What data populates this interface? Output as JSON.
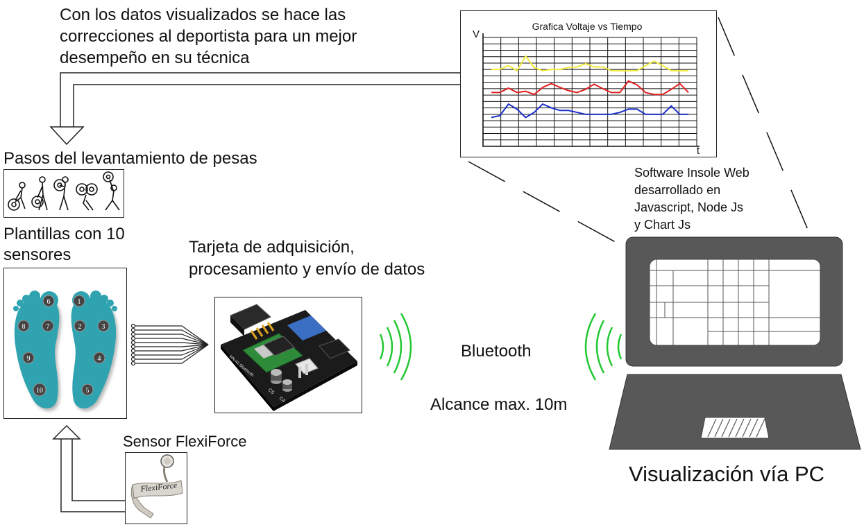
{
  "top_note": {
    "line1": "Con los datos visualizados se hace las",
    "line2": "correcciones al deportista para un mejor",
    "line3": "desempeño en su técnica"
  },
  "weightlifting": {
    "title": "Pasos del levantamiento de pesas"
  },
  "insoles": {
    "title_line1": "Plantillas con 10",
    "title_line2": "sensores",
    "sensor_numbers": [
      "1",
      "2",
      "3",
      "4",
      "5",
      "6",
      "7",
      "8",
      "9",
      "10"
    ]
  },
  "board": {
    "title_line1": "Tarjeta de adquisición,",
    "title_line2": "procesamiento y envío de datos",
    "silkscreen": [
      "RN-41 Bluetooth",
      "C5",
      "C4"
    ]
  },
  "sensor": {
    "label": "Sensor FlexiForce",
    "brand": "FlexiForce"
  },
  "wireless": {
    "label": "Bluetooth",
    "range": "Alcance max. 10m"
  },
  "software": {
    "line1": "Software Insole Web",
    "line2": "desarrollado en",
    "line3": "Javascript, Node Js",
    "line4": "y Chart Js"
  },
  "pc": {
    "caption": "Visualización vía PC"
  },
  "chart_data": {
    "type": "line",
    "title": "Grafica Voltaje vs Tiempo",
    "ylabel": "V",
    "xlabel": "t",
    "grid": true,
    "ylim": [
      0,
      17
    ],
    "x": [
      0,
      1,
      2,
      3,
      4,
      5,
      6,
      7,
      8,
      9,
      10,
      11,
      12,
      13,
      14,
      15,
      16,
      17,
      18,
      19,
      20,
      21,
      22,
      23
    ],
    "series": [
      {
        "color": "#f2ea3c",
        "values": [
          12,
          12,
          12.6,
          11.8,
          14.1,
          12.3,
          11.8,
          12,
          12,
          12.3,
          12.4,
          12.9,
          12.4,
          12.4,
          11.8,
          11.8,
          11.8,
          11.8,
          12.6,
          13.3,
          12.6,
          11.8,
          11.8,
          11.8
        ]
      },
      {
        "color": "#e02020",
        "values": [
          8.4,
          8.4,
          9.1,
          8.4,
          8.6,
          8.1,
          9.2,
          9.8,
          9.2,
          8.7,
          8.4,
          8.9,
          9.7,
          9,
          8.4,
          8.4,
          10.2,
          9.6,
          8.4,
          8.1,
          8.1,
          8.9,
          9.8,
          8.4
        ]
      },
      {
        "color": "#1a2fc8",
        "values": [
          4.5,
          4.8,
          6.6,
          5.8,
          4.5,
          5.3,
          6.6,
          6,
          5.6,
          5.6,
          5.3,
          5,
          5,
          5,
          5,
          5.3,
          5.8,
          5.8,
          5,
          5,
          5,
          6.3,
          5,
          5
        ]
      }
    ]
  }
}
